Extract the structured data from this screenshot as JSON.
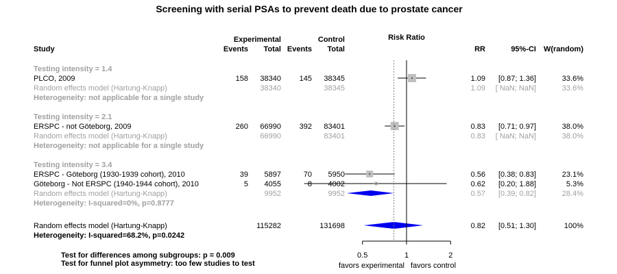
{
  "chart_data": {
    "type": "forest",
    "title": "Screening with serial PSAs to prevent death due to prostate cancer",
    "headers": {
      "study": "Study",
      "experimental": "Experimental",
      "control": "Control",
      "events": "Events",
      "total": "Total",
      "risk_ratio": "Risk Ratio",
      "rr": "RR",
      "ci": "95%-CI",
      "weight": "W(random)"
    },
    "subgroups": [
      {
        "label": "Testing intensity = 1.4",
        "studies": [
          {
            "name": "PLCO, 2009",
            "exp_events": "158",
            "exp_total": "38340",
            "ctrl_events": "145",
            "ctrl_total": "38345",
            "rr": 1.09,
            "lower": 0.87,
            "upper": 1.36,
            "rr_text": "1.09",
            "ci_text": "[0.87; 1.36]",
            "weight": "33.6%"
          }
        ],
        "pooled": {
          "name": "Random effects model  (Hartung-Knapp)",
          "exp_total": "38340",
          "ctrl_total": "38345",
          "rr_text": "1.09",
          "ci_text": "[ NaN;  NaN]",
          "weight": "33.6%"
        },
        "heterogeneity": "Heterogeneity: not applicable for a single study"
      },
      {
        "label": "Testing intensity = 2.1",
        "studies": [
          {
            "name": "ERSPC - not Göteborg, 2009",
            "exp_events": "260",
            "exp_total": "66990",
            "ctrl_events": "392",
            "ctrl_total": "83401",
            "rr": 0.83,
            "lower": 0.71,
            "upper": 0.97,
            "rr_text": "0.83",
            "ci_text": "[0.71; 0.97]",
            "weight": "38.0%"
          }
        ],
        "pooled": {
          "name": "Random effects model  (Hartung-Knapp)",
          "exp_total": "66990",
          "ctrl_total": "83401",
          "rr_text": "0.83",
          "ci_text": "[ NaN;  NaN]",
          "weight": "38.0%"
        },
        "heterogeneity": "Heterogeneity: not applicable for a single study"
      },
      {
        "label": "Testing intensity = 3.4",
        "studies": [
          {
            "name": "ERSPC - Göteborg (1930-1939 cohort), 2010",
            "exp_events": "39",
            "exp_total": "5897",
            "ctrl_events": "70",
            "ctrl_total": "5950",
            "rr": 0.56,
            "lower": 0.38,
            "upper": 0.83,
            "rr_text": "0.56",
            "ci_text": "[0.38; 0.83]",
            "weight": "23.1%"
          },
          {
            "name": "Göteborg - Not ERSPC (1940-1944 cohort), 2010",
            "exp_events": "5",
            "exp_total": "4055",
            "ctrl_events": "8",
            "ctrl_total": "4002",
            "rr": 0.62,
            "lower": 0.2,
            "upper": 1.88,
            "rr_text": "0.62",
            "ci_text": "[0.20; 1.88]",
            "weight": "5.3%"
          }
        ],
        "pooled": {
          "name": "Random effects model  (Hartung-Knapp)",
          "exp_total": "9952",
          "ctrl_total": "9952",
          "rr": 0.57,
          "lower": 0.39,
          "upper": 0.82,
          "rr_text": "0.57",
          "ci_text": "[0.39; 0.82]",
          "weight": "28.4%"
        },
        "heterogeneity": "Heterogeneity: I-squared=0%, p=0.8777"
      }
    ],
    "overall": {
      "name": "Random effects model  (Hartung-Knapp)",
      "exp_total": "115282",
      "ctrl_total": "131698",
      "rr": 0.82,
      "lower": 0.51,
      "upper": 1.3,
      "rr_text": "0.82",
      "ci_text": "[0.51; 1.30]",
      "weight": "100%"
    },
    "overall_heterogeneity": "Heterogeneity: I-squared=68.2%, p=0.0242",
    "x_axis": {
      "scale": "log",
      "range": [
        0.4,
        2.5
      ],
      "ticks": [
        0.5,
        1,
        2
      ],
      "tick_labels": [
        "0.5",
        "1",
        "2"
      ],
      "null_value": 1,
      "reference_value": 0.82
    },
    "favors_left": "favors experimental",
    "favors_right": "favors control",
    "test_subgroups": "Test for differences among subgroups: p = 0.009",
    "test_funnel": "Test for funnel plot asymmetry: too few studies to test",
    "colors": {
      "text": "#000000",
      "muted": "#a0a0a0",
      "box": "#c0c0c0",
      "diamond": "#0000ee",
      "reference": "#808080"
    }
  }
}
